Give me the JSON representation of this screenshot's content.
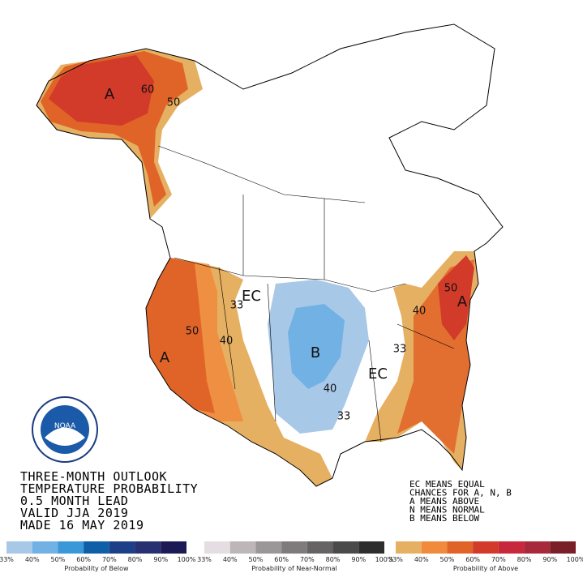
{
  "title_lines": [
    "THREE-MONTH OUTLOOK",
    "TEMPERATURE PROBABILITY",
    "0.5 MONTH LEAD",
    "VALID JJA 2019",
    "MADE 16 MAY 2019"
  ],
  "key_lines": [
    "EC MEANS EQUAL",
    "CHANCES FOR A, N, B",
    "A MEANS ABOVE",
    "N MEANS NORMAL",
    "B MEANS BELOW"
  ],
  "map_labels": [
    "A",
    "60",
    "50",
    "EC",
    "33",
    "50",
    "40",
    "A",
    "B",
    "40",
    "33",
    "EC",
    "33",
    "40",
    "50",
    "A"
  ],
  "legends": [
    {
      "title": "Probability of Below",
      "ticks": [
        "33%",
        "40%",
        "50%",
        "60%",
        "70%",
        "80%",
        "90%",
        "100%"
      ],
      "colors": [
        "#a8c8e8",
        "#72b1e4",
        "#3a98d8",
        "#0e5ea8",
        "#1d3f88",
        "#273070",
        "#1c1a55"
      ]
    },
    {
      "title": "Probability of Near-Normal",
      "ticks": [
        "33%",
        "40%",
        "50%",
        "60%",
        "70%",
        "80%",
        "90%",
        "100%"
      ],
      "colors": [
        "#e4dde1",
        "#bdb6b9",
        "#9b9697",
        "#7f7b7c",
        "#656364",
        "#4a4a4a",
        "#2e2e2e"
      ]
    },
    {
      "title": "Probability of Above",
      "ticks": [
        "33%",
        "40%",
        "50%",
        "60%",
        "70%",
        "80%",
        "90%",
        "100%"
      ],
      "colors": [
        "#e6b062",
        "#f08a3c",
        "#e06428",
        "#d23a2a",
        "#c8283c",
        "#a82a3a",
        "#7a1e28"
      ]
    }
  ]
}
